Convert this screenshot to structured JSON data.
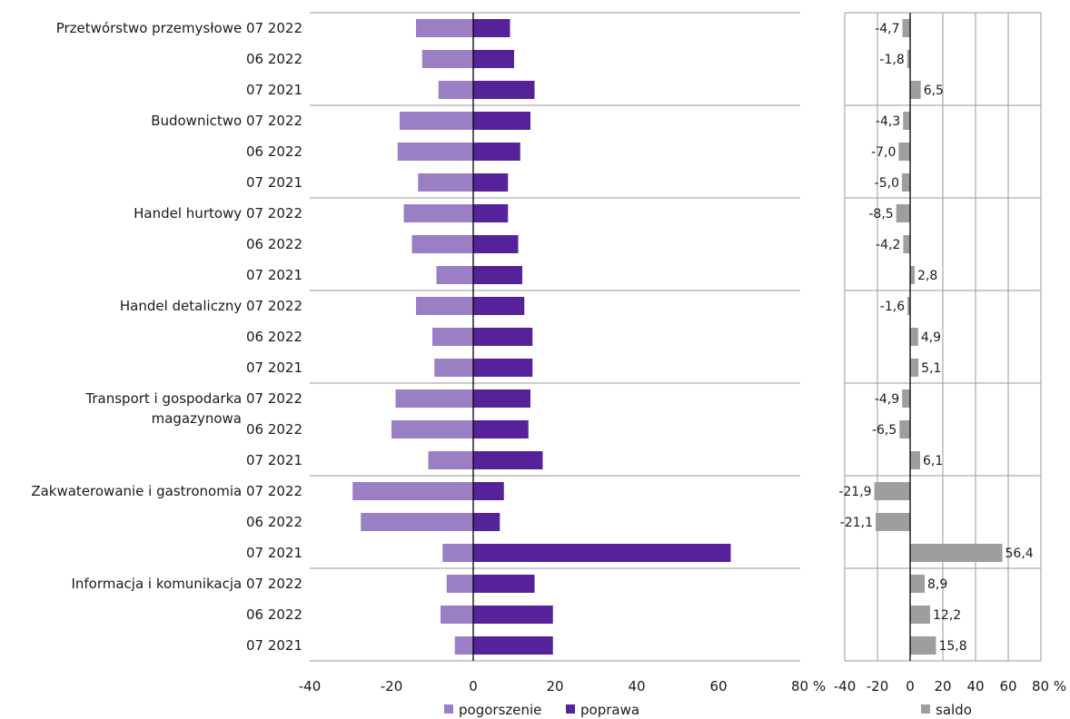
{
  "chart_data": [
    {
      "type": "bar",
      "orientation": "horizontal",
      "groups": [
        {
          "name": "Przetwórstwo przemysłowe",
          "periods": [
            "07 2022",
            "06 2022",
            "07 2021"
          ]
        },
        {
          "name": "Budownictwo",
          "periods": [
            "07 2022",
            "06 2022",
            "07 2021"
          ]
        },
        {
          "name": "Handel hurtowy",
          "periods": [
            "07 2022",
            "06 2022",
            "07 2021"
          ]
        },
        {
          "name": "Handel detaliczny",
          "periods": [
            "07 2022",
            "06 2022",
            "07 2021"
          ]
        },
        {
          "name": "Transport i gospodarka magazynowa",
          "name_lines": [
            "Transport i gospodarka",
            "magazynowa"
          ],
          "periods": [
            "07 2022",
            "06 2022",
            "07 2021"
          ]
        },
        {
          "name": "Zakwaterowanie i gastronomia",
          "periods": [
            "07 2022",
            "06 2022",
            "07 2021"
          ]
        },
        {
          "name": "Informacja i komunikacja",
          "periods": [
            "07 2022",
            "06 2022",
            "07 2021"
          ]
        }
      ],
      "series": [
        {
          "name": "pogorszenie",
          "color": "#9b7fc4",
          "values": [
            -14,
            -12.5,
            -8.5,
            -18,
            -18.5,
            -13.5,
            -17,
            -15,
            -9,
            -14,
            -10,
            -9.5,
            -19,
            -20,
            -11,
            -29.5,
            -27.5,
            -7.5,
            -6.5,
            -8,
            -4.5
          ]
        },
        {
          "name": "poprawa",
          "color": "#55229a",
          "values": [
            9,
            10,
            15,
            14,
            11.5,
            8.5,
            8.5,
            11,
            12,
            12.5,
            14.5,
            14.5,
            14,
            13.5,
            17,
            7.5,
            6.5,
            63,
            15,
            19.5,
            19.5
          ]
        }
      ],
      "xlim": [
        -40,
        80
      ],
      "xticks": [
        "-40",
        "-20",
        "0",
        "20",
        "40",
        "60",
        "80 %"
      ],
      "legend": "bottom",
      "legend_entries": [
        "pogorszenie",
        "poprawa"
      ]
    },
    {
      "type": "bar",
      "orientation": "horizontal",
      "series": [
        {
          "name": "saldo",
          "color": "#9e9e9e",
          "values": [
            -4.7,
            -1.8,
            6.5,
            -4.3,
            -7.0,
            -5.0,
            -8.5,
            -4.2,
            2.8,
            -1.6,
            4.9,
            5.1,
            -4.9,
            -6.5,
            6.1,
            -21.9,
            -21.1,
            56.4,
            8.9,
            12.2,
            15.8
          ],
          "labels": [
            "-4,7",
            "-1,8",
            "6,5",
            "-4,3",
            "-7,0",
            "-5,0",
            "-8,5",
            "-4,2",
            "2,8",
            "-1,6",
            "4,9",
            "5,1",
            "-4,9",
            "-6,5",
            "6,1",
            "-21,9",
            "-21,1",
            "56,4",
            "8,9",
            "12,2",
            "15,8"
          ]
        }
      ],
      "xlim": [
        -40,
        80
      ],
      "xticks": [
        "-40",
        "-20",
        "0",
        "20",
        "40",
        "60",
        "80 %"
      ],
      "legend": "bottom",
      "legend_entries": [
        "saldo"
      ]
    }
  ]
}
